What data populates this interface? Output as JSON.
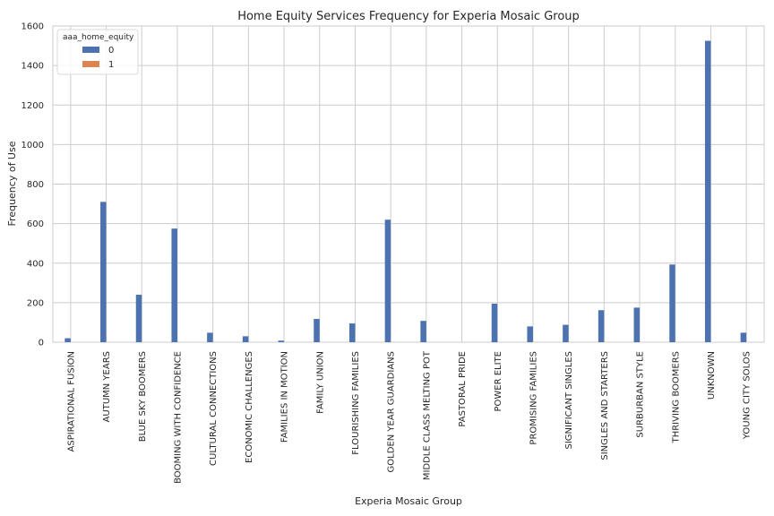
{
  "chart_data": {
    "type": "bar",
    "title": "Home Equity Services Frequency for Experia Mosaic Group",
    "xlabel": "Experia Mosaic Group",
    "ylabel": "Frequency of Use",
    "ylim": [
      0,
      1600
    ],
    "yticks": [
      0,
      200,
      400,
      600,
      800,
      1000,
      1200,
      1400,
      1600
    ],
    "grid": true,
    "legend": {
      "title": "aaa_home_equity",
      "placement": "top-left"
    },
    "categories": [
      "ASPIRATIONAL FUSION",
      "AUTUMN YEARS",
      "BLUE SKY BOOMERS",
      "BOOMING WITH CONFIDENCE",
      "CULTURAL CONNECTIONS",
      "ECONOMIC CHALLENGES",
      "FAMILIES IN MOTION",
      "FAMILY UNION",
      "FLOURISHING FAMILIES",
      "GOLDEN YEAR GUARDIANS",
      "MIDDLE CLASS MELTING POT",
      "PASTORAL PRIDE",
      "POWER ELITE",
      "PROMISING FAMILIES",
      "SIGNIFICANT SINGLES",
      "SINGLES AND STARTERS",
      "SURBURBAN STYLE",
      "THRIVING BOOMERS",
      "UNKNOWN",
      "YOUNG CITY SOLOS"
    ],
    "series": [
      {
        "name": "0",
        "color": "#4c72b0",
        "values": [
          20,
          710,
          240,
          575,
          48,
          30,
          8,
          118,
          95,
          620,
          108,
          0,
          195,
          80,
          88,
          162,
          175,
          393,
          1525,
          48
        ]
      },
      {
        "name": "1",
        "color": "#dd8452",
        "values": [
          0,
          0,
          0,
          0,
          0,
          0,
          0,
          0,
          0,
          0,
          0,
          0,
          0,
          0,
          0,
          0,
          0,
          0,
          0,
          0
        ]
      }
    ]
  }
}
